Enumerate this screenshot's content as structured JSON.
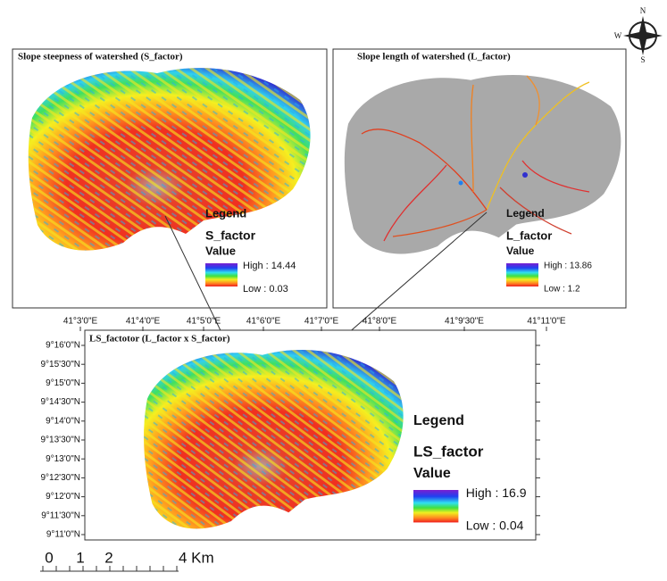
{
  "compass": {
    "north": "N",
    "west": "W",
    "south": "S"
  },
  "panels": [
    {
      "title": "Slope steepness of watershed (S_factor)",
      "legend_title": "Legend",
      "field": "S_factor",
      "value_label": "Value",
      "high": "High : 14.44",
      "low": "Low : 0.03"
    },
    {
      "title": "Slope length of watershed (L_factor)",
      "legend_title": "Legend",
      "field": "L_factor",
      "value_label": "Value",
      "high": "High : 13.86",
      "low": "Low : 1.2"
    },
    {
      "title": "LS_factotor (L_factor x S_factor)",
      "legend_title": "Legend",
      "field": "LS_factor",
      "value_label": "Value",
      "high": "High : 16.9",
      "low": "Low : 0.04"
    }
  ],
  "longitude_labels": [
    "41°3'0\"E",
    "41°4'0\"E",
    "41°5'0\"E",
    "41°6'0\"E",
    "41°7'0\"E",
    "41°8'0\"E",
    "41°9'30\"E",
    "41°11'0\"E"
  ],
  "latitude_labels": [
    "9°16'0\"N",
    "9°15'30\"N",
    "9°15'0\"N",
    "9°14'30\"N",
    "9°14'0\"N",
    "9°13'30\"N",
    "9°13'0\"N",
    "9°12'30\"N",
    "9°12'0\"N",
    "9°11'30\"N",
    "9°11'0\"N"
  ],
  "scale_bar": [
    "0",
    "1",
    "2",
    "4 Km"
  ]
}
